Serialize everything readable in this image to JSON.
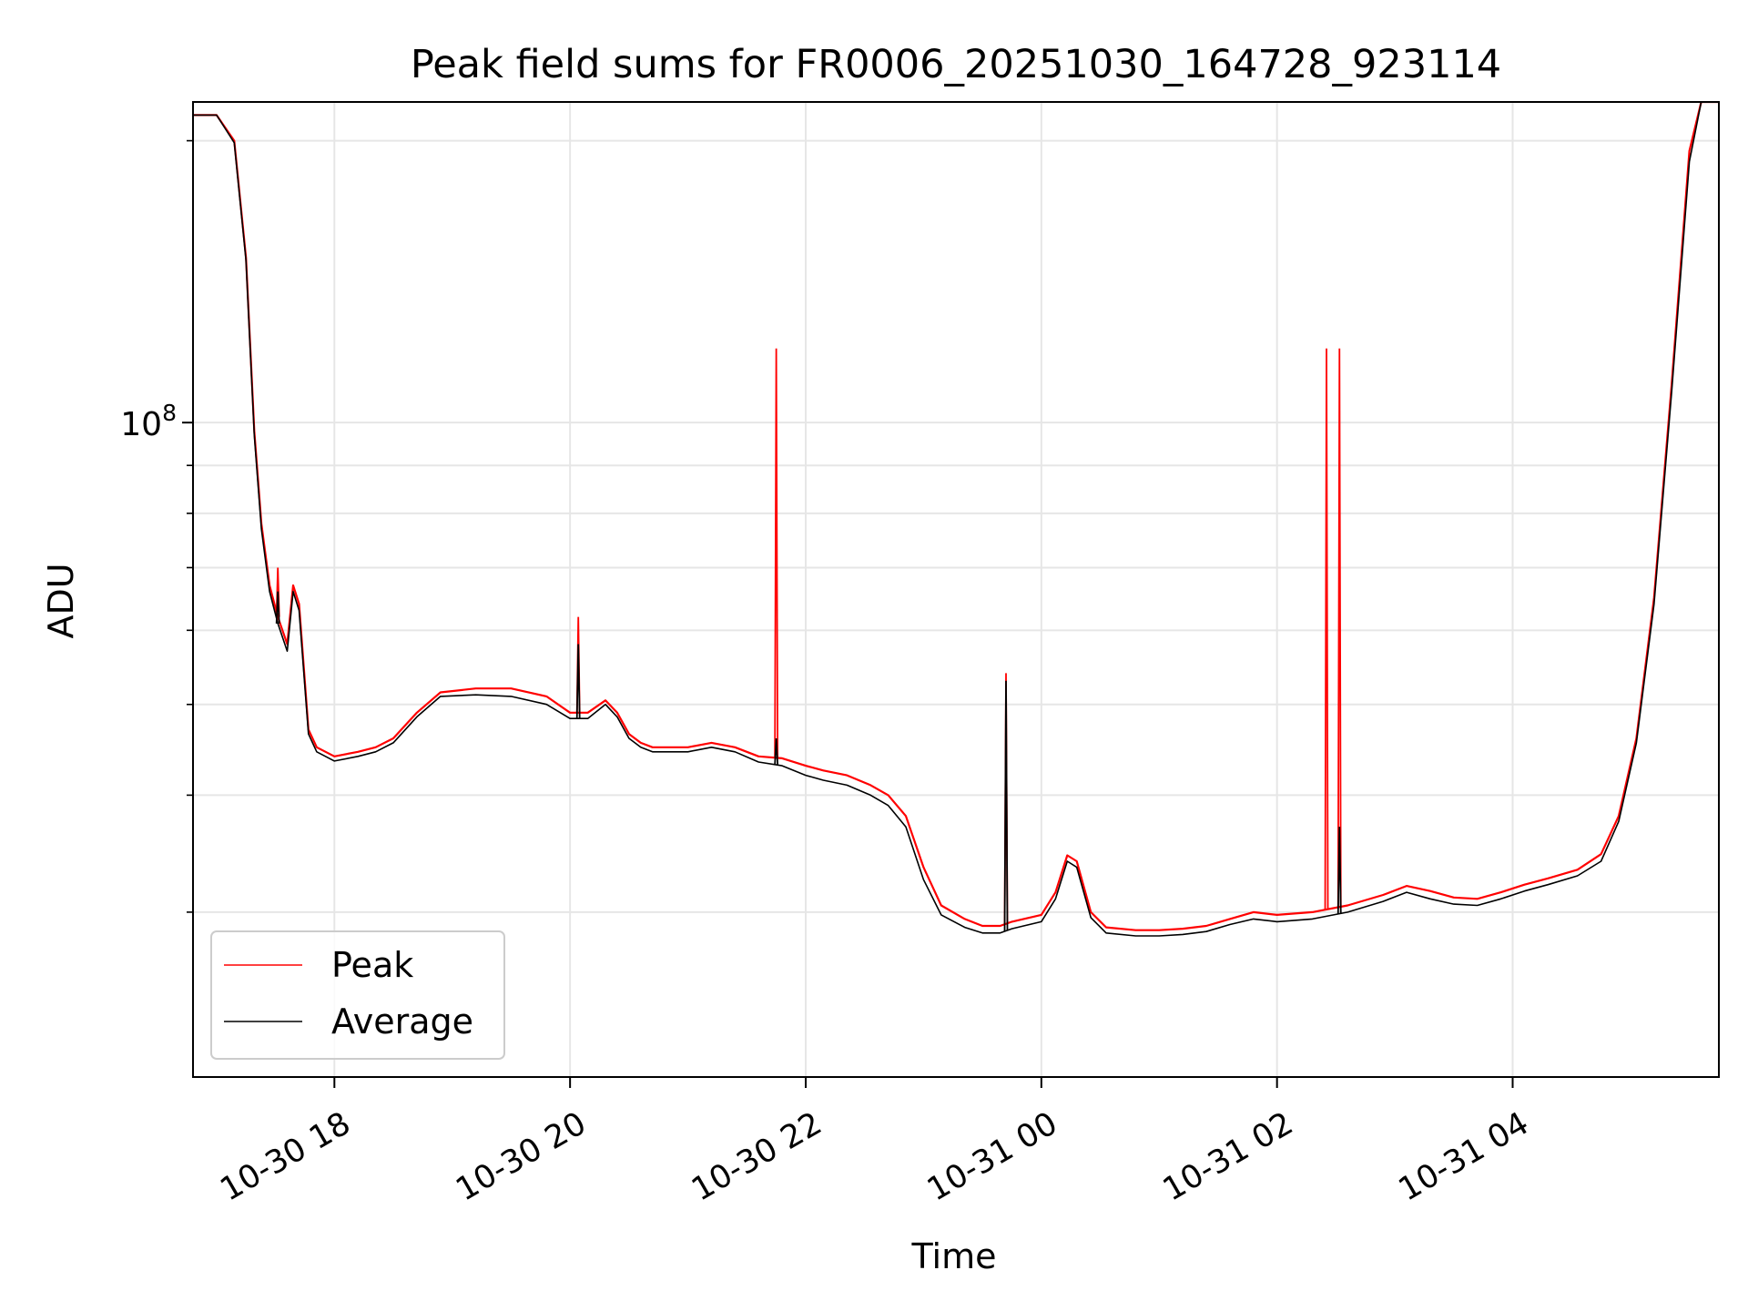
{
  "chart_data": {
    "type": "line",
    "title": "Peak field sums for FR0006_20251030_164728_923114",
    "xlabel": "Time",
    "ylabel": "ADU",
    "y_scale": "log",
    "ylim": [
      20000000,
      220000000
    ],
    "xlim_hours": [
      16.8,
      29.75
    ],
    "x_ticks": [
      {
        "h": 18,
        "label": "10-30 18"
      },
      {
        "h": 20,
        "label": "10-30 20"
      },
      {
        "h": 22,
        "label": "10-30 22"
      },
      {
        "h": 24,
        "label": "10-31 00"
      },
      {
        "h": 26,
        "label": "10-31 02"
      },
      {
        "h": 28,
        "label": "10-31 04"
      }
    ],
    "y_major_ticks": [
      {
        "v": 100000000,
        "base": "10",
        "exp": "8"
      }
    ],
    "y_minor_ticks": [
      30000000,
      40000000,
      50000000,
      60000000,
      70000000,
      80000000,
      90000000,
      200000000
    ],
    "grid": true,
    "legend_position": "lower-left",
    "series": [
      {
        "name": "Peak",
        "color": "#ff0000",
        "x_hours": [
          16.8,
          17.0,
          17.15,
          17.25,
          17.32,
          17.38,
          17.45,
          17.52,
          17.6,
          17.65,
          17.7,
          17.78,
          17.85,
          18.0,
          18.2,
          18.35,
          18.5,
          18.7,
          18.9,
          19.2,
          19.5,
          19.8,
          20.0,
          20.15,
          20.3,
          20.4,
          20.5,
          20.6,
          20.7,
          20.85,
          21.0,
          21.2,
          21.4,
          21.6,
          21.8,
          22.0,
          22.15,
          22.35,
          22.55,
          22.7,
          22.85,
          23.0,
          23.15,
          23.35,
          23.5,
          23.65,
          23.75,
          23.85,
          24.0,
          24.12,
          24.22,
          24.3,
          24.42,
          24.55,
          24.8,
          25.0,
          25.2,
          25.4,
          25.6,
          25.8,
          26.0,
          26.3,
          26.6,
          26.9,
          27.1,
          27.3,
          27.5,
          27.7,
          27.9,
          28.1,
          28.3,
          28.55,
          28.75,
          28.9,
          29.05,
          29.2,
          29.35,
          29.5,
          29.6,
          29.75
        ],
        "values": [
          213000000,
          213000000,
          200000000,
          150000000,
          98000000,
          78000000,
          67000000,
          62000000,
          58000000,
          67000000,
          64000000,
          47000000,
          45000000,
          44000000,
          44500000,
          45000000,
          46000000,
          49000000,
          51500000,
          52000000,
          52000000,
          51000000,
          49000000,
          49000000,
          50500000,
          49000000,
          46500000,
          45500000,
          45000000,
          45000000,
          45000000,
          45500000,
          45000000,
          44000000,
          43800000,
          43000000,
          42500000,
          42000000,
          41000000,
          40000000,
          38000000,
          33500000,
          30500000,
          29500000,
          29000000,
          29000000,
          29300000,
          29500000,
          29800000,
          31500000,
          34500000,
          34000000,
          30000000,
          28900000,
          28700000,
          28700000,
          28800000,
          29000000,
          29500000,
          30000000,
          29800000,
          30000000,
          30500000,
          31300000,
          32000000,
          31600000,
          31100000,
          31000000,
          31500000,
          32100000,
          32600000,
          33300000,
          34600000,
          38000000,
          46000000,
          65000000,
          110000000,
          195000000,
          220000000,
          220000000
        ],
        "spikes": [
          {
            "h": 17.52,
            "v": 70000000
          },
          {
            "h": 20.07,
            "v": 62000000
          },
          {
            "h": 21.75,
            "v": 120000000
          },
          {
            "h": 23.7,
            "v": 54000000
          },
          {
            "h": 26.42,
            "v": 120000000
          },
          {
            "h": 26.53,
            "v": 120000000
          }
        ]
      },
      {
        "name": "Average",
        "color": "#000000",
        "x_hours": [
          16.8,
          17.0,
          17.15,
          17.25,
          17.32,
          17.38,
          17.45,
          17.52,
          17.6,
          17.65,
          17.7,
          17.78,
          17.85,
          18.0,
          18.2,
          18.35,
          18.5,
          18.7,
          18.9,
          19.2,
          19.5,
          19.8,
          20.0,
          20.15,
          20.3,
          20.4,
          20.5,
          20.6,
          20.7,
          20.85,
          21.0,
          21.2,
          21.4,
          21.6,
          21.8,
          22.0,
          22.15,
          22.35,
          22.55,
          22.7,
          22.85,
          23.0,
          23.15,
          23.35,
          23.5,
          23.65,
          23.75,
          23.85,
          24.0,
          24.12,
          24.22,
          24.3,
          24.42,
          24.55,
          24.8,
          25.0,
          25.2,
          25.4,
          25.6,
          25.8,
          26.0,
          26.3,
          26.6,
          26.9,
          27.1,
          27.3,
          27.5,
          27.7,
          27.9,
          28.1,
          28.3,
          28.55,
          28.75,
          28.9,
          29.05,
          29.2,
          29.35,
          29.5,
          29.6,
          29.75
        ],
        "values": [
          213000000,
          213000000,
          199000000,
          149000000,
          97000000,
          77000000,
          66000000,
          61000000,
          57000000,
          66000000,
          63000000,
          46500000,
          44500000,
          43500000,
          44000000,
          44500000,
          45500000,
          48500000,
          51000000,
          51200000,
          51000000,
          50000000,
          48300000,
          48300000,
          50000000,
          48500000,
          46000000,
          45000000,
          44500000,
          44500000,
          44500000,
          45000000,
          44500000,
          43400000,
          43000000,
          42000000,
          41500000,
          41000000,
          40000000,
          39000000,
          37000000,
          32500000,
          29800000,
          28900000,
          28500000,
          28500000,
          28800000,
          29000000,
          29300000,
          31000000,
          34000000,
          33500000,
          29600000,
          28500000,
          28300000,
          28300000,
          28400000,
          28600000,
          29100000,
          29500000,
          29300000,
          29500000,
          30000000,
          30800000,
          31500000,
          31000000,
          30600000,
          30500000,
          31000000,
          31600000,
          32100000,
          32800000,
          34000000,
          37500000,
          45500000,
          64000000,
          108000000,
          190000000,
          220000000,
          220000000
        ],
        "spikes": [
          {
            "h": 17.52,
            "v": 66000000
          },
          {
            "h": 20.07,
            "v": 58000000
          },
          {
            "h": 21.75,
            "v": 46000000
          },
          {
            "h": 23.7,
            "v": 53000000
          },
          {
            "h": 26.53,
            "v": 37000000
          }
        ]
      }
    ]
  }
}
